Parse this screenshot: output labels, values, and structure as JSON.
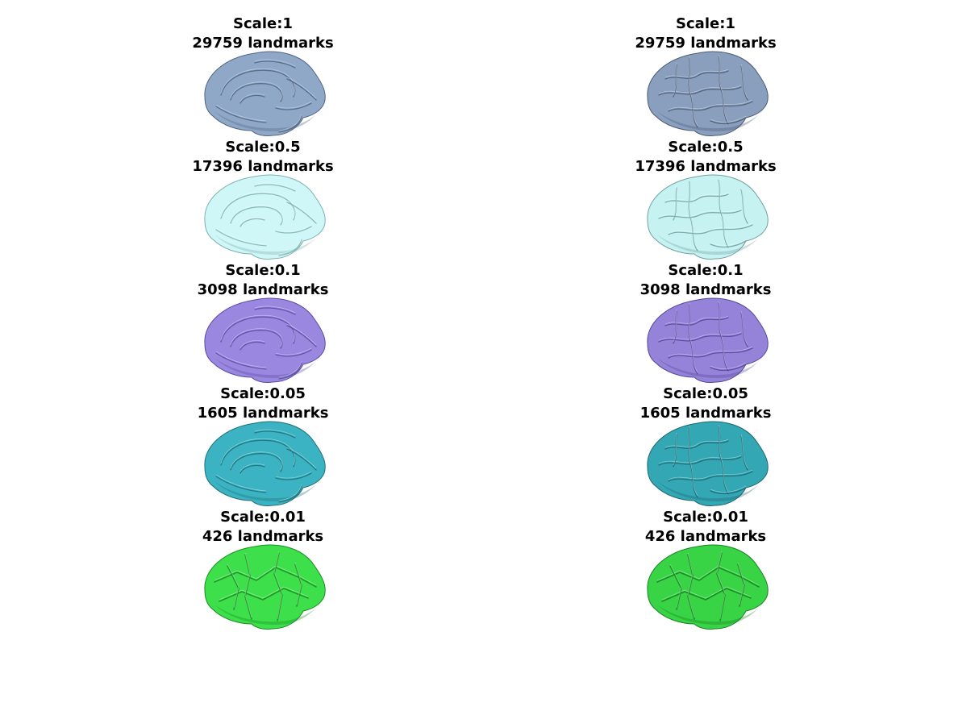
{
  "panels": [
    {
      "id": "l1",
      "scale": "Scale:1",
      "landmarks": "29759  landmarks",
      "color": "#8fa8c8",
      "edge": "#4f6480",
      "view": "medial"
    },
    {
      "id": "r1",
      "scale": "Scale:1",
      "landmarks": "29759  landmarks",
      "color": "#8a9fbd",
      "edge": "#4a5a72",
      "view": "lateral"
    },
    {
      "id": "l2",
      "scale": "Scale:0.5",
      "landmarks": "17396  landmarks",
      "color": "#cff7f7",
      "edge": "#7fb0b0",
      "view": "medial"
    },
    {
      "id": "r2",
      "scale": "Scale:0.5",
      "landmarks": "17396  landmarks",
      "color": "#c7f2f2",
      "edge": "#6fa0a0",
      "view": "lateral"
    },
    {
      "id": "l3",
      "scale": "Scale:0.1",
      "landmarks": "3098  landmarks",
      "color": "#9a88e0",
      "edge": "#5a4aa0",
      "view": "medial"
    },
    {
      "id": "r3",
      "scale": "Scale:0.1",
      "landmarks": "3098  landmarks",
      "color": "#9483d8",
      "edge": "#55479a",
      "view": "lateral"
    },
    {
      "id": "l4",
      "scale": "Scale:0.05",
      "landmarks": "1605  landmarks",
      "color": "#3bb3c2",
      "edge": "#1f6f78",
      "view": "medial"
    },
    {
      "id": "r4",
      "scale": "Scale:0.05",
      "landmarks": "1605  landmarks",
      "color": "#34a7b5",
      "edge": "#1c6670",
      "view": "lateral"
    },
    {
      "id": "l5",
      "scale": "Scale:0.01",
      "landmarks": "426  landmarks",
      "color": "#3de04a",
      "edge": "#1c8a25",
      "view": "medial"
    },
    {
      "id": "r5",
      "scale": "Scale:0.01",
      "landmarks": "426  landmarks",
      "color": "#38d445",
      "edge": "#1a8022",
      "view": "lateral"
    }
  ]
}
